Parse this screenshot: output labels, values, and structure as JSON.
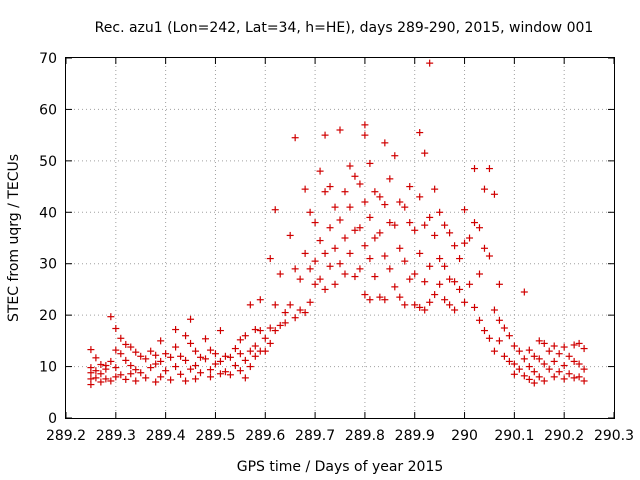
{
  "chart_data": {
    "type": "scatter",
    "title": "Rec. azu1 (Lon=242, Lat=34, h=HE), days 289-290, 2015, window 001",
    "xlabel": "GPS time / Days of year 2015",
    "ylabel": "STEC from uqrg / TECUs",
    "xlim": [
      289.2,
      290.3
    ],
    "ylim": [
      0,
      70
    ],
    "x_ticks": [
      "289.2",
      "289.3",
      "289.4",
      "289.5",
      "289.6",
      "289.7",
      "289.8",
      "289.9",
      "290",
      "290.1",
      "290.2",
      "290.3"
    ],
    "y_ticks": [
      "0",
      "10",
      "20",
      "30",
      "40",
      "50",
      "60",
      "70"
    ],
    "grid": true,
    "marker": "plus",
    "color": "#d00000",
    "series": [
      {
        "points": [
          [
            289.25,
            13.3
          ],
          [
            289.25,
            9.8
          ],
          [
            289.25,
            8.8
          ],
          [
            289.25,
            7.6
          ],
          [
            289.25,
            6.5
          ],
          [
            289.26,
            11.7
          ],
          [
            289.26,
            9.2
          ],
          [
            289.26,
            7.8
          ],
          [
            289.27,
            10.4
          ],
          [
            289.27,
            8.6
          ],
          [
            289.27,
            7.0
          ],
          [
            289.28,
            10.2
          ],
          [
            289.28,
            9.5
          ],
          [
            289.28,
            7.6
          ],
          [
            289.29,
            19.7
          ],
          [
            289.29,
            11.0
          ],
          [
            289.29,
            7.2
          ],
          [
            289.3,
            17.4
          ],
          [
            289.3,
            13.2
          ],
          [
            289.3,
            9.8
          ],
          [
            289.3,
            8.0
          ],
          [
            289.31,
            15.5
          ],
          [
            289.31,
            12.5
          ],
          [
            289.31,
            8.4
          ],
          [
            289.32,
            14.3
          ],
          [
            289.32,
            11.2
          ],
          [
            289.32,
            7.5
          ],
          [
            289.33,
            13.8
          ],
          [
            289.33,
            10.2
          ],
          [
            289.33,
            8.6
          ],
          [
            289.34,
            12.8
          ],
          [
            289.34,
            9.4
          ],
          [
            289.34,
            7.2
          ],
          [
            289.35,
            12.0
          ],
          [
            289.35,
            8.8
          ],
          [
            289.36,
            11.5
          ],
          [
            289.36,
            7.8
          ],
          [
            289.37,
            13.0
          ],
          [
            289.37,
            9.8
          ],
          [
            289.38,
            12.2
          ],
          [
            289.38,
            10.5
          ],
          [
            289.38,
            7.0
          ],
          [
            289.39,
            15.0
          ],
          [
            289.39,
            11.0
          ],
          [
            289.39,
            8.0
          ],
          [
            289.4,
            12.5
          ],
          [
            289.4,
            9.2
          ],
          [
            289.41,
            11.8
          ],
          [
            289.41,
            7.4
          ],
          [
            289.42,
            17.2
          ],
          [
            289.42,
            13.8
          ],
          [
            289.42,
            10.0
          ],
          [
            289.43,
            12.0
          ],
          [
            289.43,
            8.5
          ],
          [
            289.44,
            16.0
          ],
          [
            289.44,
            11.2
          ],
          [
            289.44,
            7.2
          ],
          [
            289.45,
            19.2
          ],
          [
            289.45,
            14.5
          ],
          [
            289.45,
            9.5
          ],
          [
            289.46,
            13.0
          ],
          [
            289.46,
            10.2
          ],
          [
            289.46,
            7.6
          ],
          [
            289.47,
            11.8
          ],
          [
            289.47,
            8.8
          ],
          [
            289.48,
            15.4
          ],
          [
            289.48,
            11.5
          ],
          [
            289.49,
            13.2
          ],
          [
            289.49,
            9.4
          ],
          [
            289.49,
            8.0
          ],
          [
            289.5,
            12.5
          ],
          [
            289.5,
            10.5
          ],
          [
            289.51,
            17.0
          ],
          [
            289.51,
            11.0
          ],
          [
            289.51,
            8.6
          ],
          [
            289.52,
            12.0
          ],
          [
            289.52,
            9.0
          ],
          [
            289.53,
            11.8
          ],
          [
            289.53,
            8.4
          ],
          [
            289.54,
            13.5
          ],
          [
            289.54,
            10.2
          ],
          [
            289.55,
            15.2
          ],
          [
            289.55,
            12.5
          ],
          [
            289.55,
            9.2
          ],
          [
            289.56,
            16.0
          ],
          [
            289.56,
            11.2
          ],
          [
            289.56,
            7.8
          ],
          [
            289.57,
            22.0
          ],
          [
            289.57,
            13.0
          ],
          [
            289.57,
            10.0
          ],
          [
            289.58,
            17.2
          ],
          [
            289.58,
            14.0
          ],
          [
            289.58,
            12.0
          ],
          [
            289.59,
            23.0
          ],
          [
            289.59,
            17.0
          ],
          [
            289.59,
            13.0
          ],
          [
            289.6,
            15.5
          ],
          [
            289.6,
            13.0
          ],
          [
            289.61,
            31.0
          ],
          [
            289.61,
            17.5
          ],
          [
            289.61,
            14.5
          ],
          [
            289.62,
            40.5
          ],
          [
            289.62,
            22.0
          ],
          [
            289.62,
            17.0
          ],
          [
            289.63,
            28.0
          ],
          [
            289.63,
            18.0
          ],
          [
            289.64,
            20.5
          ],
          [
            289.64,
            18.5
          ],
          [
            289.65,
            35.5
          ],
          [
            289.65,
            22.0
          ],
          [
            289.66,
            54.5
          ],
          [
            289.66,
            29.0
          ],
          [
            289.66,
            19.5
          ],
          [
            289.67,
            27.0
          ],
          [
            289.67,
            21.0
          ],
          [
            289.68,
            44.5
          ],
          [
            289.68,
            32.0
          ],
          [
            289.68,
            20.5
          ],
          [
            289.69,
            40.0
          ],
          [
            289.69,
            29.0
          ],
          [
            289.69,
            22.5
          ],
          [
            289.7,
            38.0
          ],
          [
            289.7,
            30.5
          ],
          [
            289.7,
            26.0
          ],
          [
            289.71,
            48.0
          ],
          [
            289.71,
            34.5
          ],
          [
            289.71,
            27.0
          ],
          [
            289.72,
            55.0
          ],
          [
            289.72,
            44.0
          ],
          [
            289.72,
            32.0
          ],
          [
            289.72,
            25.0
          ],
          [
            289.73,
            45.0
          ],
          [
            289.73,
            37.0
          ],
          [
            289.73,
            29.5
          ],
          [
            289.74,
            41.0
          ],
          [
            289.74,
            33.0
          ],
          [
            289.74,
            26.0
          ],
          [
            289.75,
            56.0
          ],
          [
            289.75,
            38.5
          ],
          [
            289.75,
            30.0
          ],
          [
            289.76,
            44.0
          ],
          [
            289.76,
            35.0
          ],
          [
            289.76,
            28.0
          ],
          [
            289.77,
            49.0
          ],
          [
            289.77,
            41.0
          ],
          [
            289.77,
            32.0
          ],
          [
            289.78,
            47.0
          ],
          [
            289.78,
            36.5
          ],
          [
            289.78,
            27.5
          ],
          [
            289.79,
            45.5
          ],
          [
            289.79,
            37.0
          ],
          [
            289.79,
            29.0
          ],
          [
            289.8,
            57.0
          ],
          [
            289.8,
            55.0
          ],
          [
            289.8,
            42.0
          ],
          [
            289.8,
            33.5
          ],
          [
            289.8,
            24.0
          ],
          [
            289.81,
            49.5
          ],
          [
            289.81,
            39.0
          ],
          [
            289.81,
            31.0
          ],
          [
            289.81,
            23.0
          ],
          [
            289.82,
            44.0
          ],
          [
            289.82,
            35.0
          ],
          [
            289.82,
            27.5
          ],
          [
            289.83,
            43.0
          ],
          [
            289.83,
            36.0
          ],
          [
            289.83,
            23.5
          ],
          [
            289.84,
            53.5
          ],
          [
            289.84,
            41.5
          ],
          [
            289.84,
            31.5
          ],
          [
            289.84,
            23.0
          ],
          [
            289.85,
            46.5
          ],
          [
            289.85,
            38.0
          ],
          [
            289.85,
            29.0
          ],
          [
            289.86,
            51.0
          ],
          [
            289.86,
            37.5
          ],
          [
            289.86,
            25.5
          ],
          [
            289.87,
            42.0
          ],
          [
            289.87,
            33.0
          ],
          [
            289.87,
            23.5
          ],
          [
            289.88,
            41.0
          ],
          [
            289.88,
            30.5
          ],
          [
            289.88,
            22.0
          ],
          [
            289.89,
            45.0
          ],
          [
            289.89,
            38.0
          ],
          [
            289.89,
            27.0
          ],
          [
            289.9,
            36.5
          ],
          [
            289.9,
            28.0
          ],
          [
            289.9,
            22.0
          ],
          [
            289.91,
            55.5
          ],
          [
            289.91,
            43.0
          ],
          [
            289.91,
            32.0
          ],
          [
            289.91,
            21.5
          ],
          [
            289.92,
            51.5
          ],
          [
            289.92,
            37.5
          ],
          [
            289.92,
            26.5
          ],
          [
            289.92,
            21.0
          ],
          [
            289.93,
            69.0
          ],
          [
            289.93,
            39.0
          ],
          [
            289.93,
            29.5
          ],
          [
            289.93,
            22.5
          ],
          [
            289.94,
            44.5
          ],
          [
            289.94,
            35.5
          ],
          [
            289.94,
            24.0
          ],
          [
            289.95,
            40.0
          ],
          [
            289.95,
            31.0
          ],
          [
            289.95,
            26.0
          ],
          [
            289.96,
            37.5
          ],
          [
            289.96,
            29.5
          ],
          [
            289.96,
            23.0
          ],
          [
            289.97,
            36.0
          ],
          [
            289.97,
            27.0
          ],
          [
            289.97,
            22.0
          ],
          [
            289.98,
            33.5
          ],
          [
            289.98,
            26.5
          ],
          [
            289.98,
            21.0
          ],
          [
            289.99,
            31.0
          ],
          [
            289.99,
            25.0
          ],
          [
            290.0,
            40.5
          ],
          [
            290.0,
            34.0
          ],
          [
            290.0,
            22.5
          ],
          [
            290.01,
            35.0
          ],
          [
            290.01,
            26.0
          ],
          [
            290.02,
            48.5
          ],
          [
            290.02,
            38.0
          ],
          [
            290.02,
            21.5
          ],
          [
            290.03,
            37.0
          ],
          [
            290.03,
            28.0
          ],
          [
            290.03,
            19.0
          ],
          [
            290.04,
            44.5
          ],
          [
            290.04,
            33.0
          ],
          [
            290.04,
            17.0
          ],
          [
            290.05,
            48.5
          ],
          [
            290.05,
            31.5
          ],
          [
            290.05,
            15.5
          ],
          [
            290.06,
            43.5
          ],
          [
            290.06,
            21.0
          ],
          [
            290.06,
            13.0
          ],
          [
            290.07,
            26.0
          ],
          [
            290.07,
            19.0
          ],
          [
            290.07,
            15.0
          ],
          [
            290.08,
            17.5
          ],
          [
            290.08,
            12.0
          ],
          [
            290.09,
            16.0
          ],
          [
            290.09,
            11.0
          ],
          [
            290.1,
            14.0
          ],
          [
            290.1,
            10.5
          ],
          [
            290.1,
            8.5
          ],
          [
            290.11,
            13.0
          ],
          [
            290.11,
            9.5
          ],
          [
            290.12,
            24.5
          ],
          [
            290.12,
            11.5
          ],
          [
            290.12,
            8.2
          ],
          [
            290.13,
            13.2
          ],
          [
            290.13,
            10.0
          ],
          [
            290.13,
            7.5
          ],
          [
            290.14,
            12.0
          ],
          [
            290.14,
            9.0
          ],
          [
            290.14,
            6.8
          ],
          [
            290.15,
            15.0
          ],
          [
            290.15,
            11.5
          ],
          [
            290.15,
            8.0
          ],
          [
            290.16,
            14.5
          ],
          [
            290.16,
            10.5
          ],
          [
            290.16,
            7.2
          ],
          [
            290.17,
            13.0
          ],
          [
            290.17,
            9.5
          ],
          [
            290.18,
            14.0
          ],
          [
            290.18,
            11.0
          ],
          [
            290.18,
            8.0
          ],
          [
            290.19,
            12.5
          ],
          [
            290.19,
            9.0
          ],
          [
            290.2,
            13.8
          ],
          [
            290.2,
            10.2
          ],
          [
            290.2,
            7.6
          ],
          [
            290.21,
            12.0
          ],
          [
            290.21,
            8.6
          ],
          [
            290.22,
            14.2
          ],
          [
            290.22,
            11.0
          ],
          [
            290.22,
            7.8
          ],
          [
            290.23,
            14.5
          ],
          [
            290.23,
            10.5
          ],
          [
            290.23,
            8.0
          ],
          [
            290.24,
            13.5
          ],
          [
            290.24,
            9.5
          ],
          [
            290.24,
            7.2
          ]
        ]
      }
    ]
  }
}
